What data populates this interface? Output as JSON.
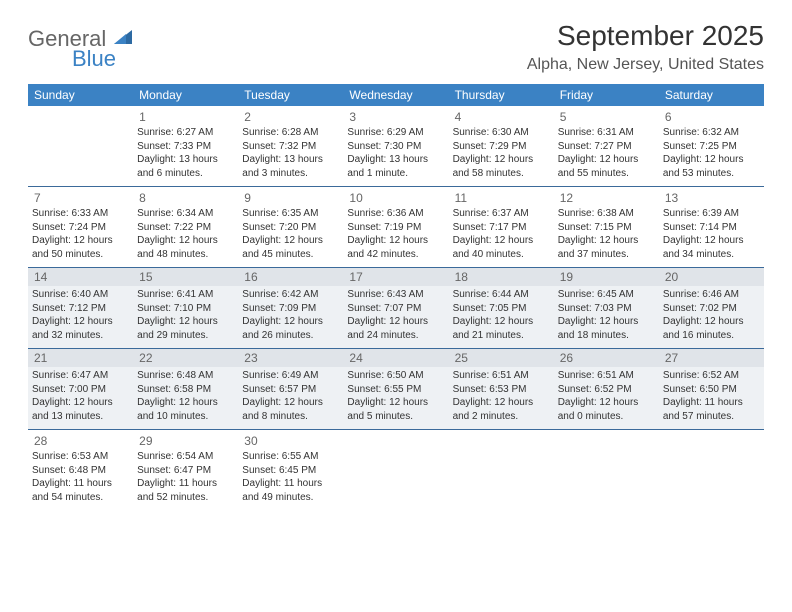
{
  "logo": {
    "word1": "General",
    "word2": "Blue"
  },
  "title": "September 2025",
  "subtitle": "Alpha, New Jersey, United States",
  "colors": {
    "header_bg": "#3b82c4",
    "header_text": "#ffffff",
    "border": "#3b6a9a",
    "shade_bg": "#eef1f4",
    "shade_daynum_bg": "#e0e4e9",
    "text": "#333333",
    "logo_gray": "#666666",
    "logo_blue": "#3b82c4"
  },
  "typography": {
    "title_fontsize": 28,
    "subtitle_fontsize": 16,
    "dayhead_fontsize": 12,
    "daynum_fontsize": 12,
    "info_fontsize": 10
  },
  "day_headers": [
    "Sunday",
    "Monday",
    "Tuesday",
    "Wednesday",
    "Thursday",
    "Friday",
    "Saturday"
  ],
  "weeks": [
    [
      {
        "blank": true
      },
      {
        "num": "1",
        "sunrise": "6:27 AM",
        "sunset": "7:33 PM",
        "daylight": "13 hours and 6 minutes."
      },
      {
        "num": "2",
        "sunrise": "6:28 AM",
        "sunset": "7:32 PM",
        "daylight": "13 hours and 3 minutes."
      },
      {
        "num": "3",
        "sunrise": "6:29 AM",
        "sunset": "7:30 PM",
        "daylight": "13 hours and 1 minute."
      },
      {
        "num": "4",
        "sunrise": "6:30 AM",
        "sunset": "7:29 PM",
        "daylight": "12 hours and 58 minutes."
      },
      {
        "num": "5",
        "sunrise": "6:31 AM",
        "sunset": "7:27 PM",
        "daylight": "12 hours and 55 minutes."
      },
      {
        "num": "6",
        "sunrise": "6:32 AM",
        "sunset": "7:25 PM",
        "daylight": "12 hours and 53 minutes."
      }
    ],
    [
      {
        "num": "7",
        "sunrise": "6:33 AM",
        "sunset": "7:24 PM",
        "daylight": "12 hours and 50 minutes."
      },
      {
        "num": "8",
        "sunrise": "6:34 AM",
        "sunset": "7:22 PM",
        "daylight": "12 hours and 48 minutes."
      },
      {
        "num": "9",
        "sunrise": "6:35 AM",
        "sunset": "7:20 PM",
        "daylight": "12 hours and 45 minutes."
      },
      {
        "num": "10",
        "sunrise": "6:36 AM",
        "sunset": "7:19 PM",
        "daylight": "12 hours and 42 minutes."
      },
      {
        "num": "11",
        "sunrise": "6:37 AM",
        "sunset": "7:17 PM",
        "daylight": "12 hours and 40 minutes."
      },
      {
        "num": "12",
        "sunrise": "6:38 AM",
        "sunset": "7:15 PM",
        "daylight": "12 hours and 37 minutes."
      },
      {
        "num": "13",
        "sunrise": "6:39 AM",
        "sunset": "7:14 PM",
        "daylight": "12 hours and 34 minutes."
      }
    ],
    [
      {
        "num": "14",
        "sunrise": "6:40 AM",
        "sunset": "7:12 PM",
        "daylight": "12 hours and 32 minutes."
      },
      {
        "num": "15",
        "sunrise": "6:41 AM",
        "sunset": "7:10 PM",
        "daylight": "12 hours and 29 minutes."
      },
      {
        "num": "16",
        "sunrise": "6:42 AM",
        "sunset": "7:09 PM",
        "daylight": "12 hours and 26 minutes."
      },
      {
        "num": "17",
        "sunrise": "6:43 AM",
        "sunset": "7:07 PM",
        "daylight": "12 hours and 24 minutes."
      },
      {
        "num": "18",
        "sunrise": "6:44 AM",
        "sunset": "7:05 PM",
        "daylight": "12 hours and 21 minutes."
      },
      {
        "num": "19",
        "sunrise": "6:45 AM",
        "sunset": "7:03 PM",
        "daylight": "12 hours and 18 minutes."
      },
      {
        "num": "20",
        "sunrise": "6:46 AM",
        "sunset": "7:02 PM",
        "daylight": "12 hours and 16 minutes."
      }
    ],
    [
      {
        "num": "21",
        "sunrise": "6:47 AM",
        "sunset": "7:00 PM",
        "daylight": "12 hours and 13 minutes."
      },
      {
        "num": "22",
        "sunrise": "6:48 AM",
        "sunset": "6:58 PM",
        "daylight": "12 hours and 10 minutes."
      },
      {
        "num": "23",
        "sunrise": "6:49 AM",
        "sunset": "6:57 PM",
        "daylight": "12 hours and 8 minutes."
      },
      {
        "num": "24",
        "sunrise": "6:50 AM",
        "sunset": "6:55 PM",
        "daylight": "12 hours and 5 minutes."
      },
      {
        "num": "25",
        "sunrise": "6:51 AM",
        "sunset": "6:53 PM",
        "daylight": "12 hours and 2 minutes."
      },
      {
        "num": "26",
        "sunrise": "6:51 AM",
        "sunset": "6:52 PM",
        "daylight": "12 hours and 0 minutes."
      },
      {
        "num": "27",
        "sunrise": "6:52 AM",
        "sunset": "6:50 PM",
        "daylight": "11 hours and 57 minutes."
      }
    ],
    [
      {
        "num": "28",
        "sunrise": "6:53 AM",
        "sunset": "6:48 PM",
        "daylight": "11 hours and 54 minutes."
      },
      {
        "num": "29",
        "sunrise": "6:54 AM",
        "sunset": "6:47 PM",
        "daylight": "11 hours and 52 minutes."
      },
      {
        "num": "30",
        "sunrise": "6:55 AM",
        "sunset": "6:45 PM",
        "daylight": "11 hours and 49 minutes."
      },
      {
        "blank": true
      },
      {
        "blank": true
      },
      {
        "blank": true
      },
      {
        "blank": true
      }
    ]
  ],
  "labels": {
    "sunrise": "Sunrise:",
    "sunset": "Sunset:",
    "daylight": "Daylight:"
  },
  "shaded_weeks": [
    2,
    3
  ]
}
